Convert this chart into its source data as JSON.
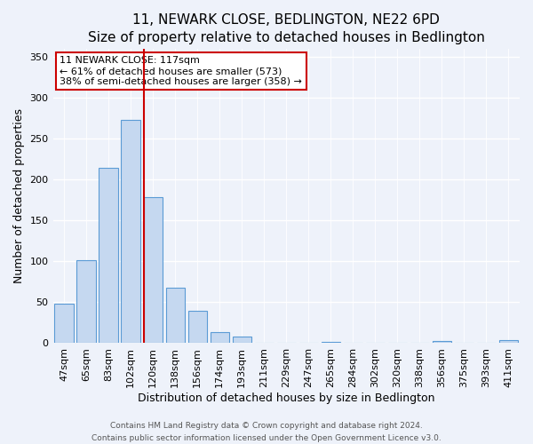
{
  "title": "11, NEWARK CLOSE, BEDLINGTON, NE22 6PD",
  "subtitle": "Size of property relative to detached houses in Bedlington",
  "xlabel": "Distribution of detached houses by size in Bedlington",
  "ylabel": "Number of detached properties",
  "bar_labels": [
    "47sqm",
    "65sqm",
    "83sqm",
    "102sqm",
    "120sqm",
    "138sqm",
    "156sqm",
    "174sqm",
    "193sqm",
    "211sqm",
    "229sqm",
    "247sqm",
    "265sqm",
    "284sqm",
    "302sqm",
    "320sqm",
    "338sqm",
    "356sqm",
    "375sqm",
    "393sqm",
    "411sqm"
  ],
  "bar_values": [
    48,
    102,
    215,
    273,
    179,
    68,
    40,
    14,
    8,
    0,
    0,
    0,
    2,
    0,
    0,
    0,
    0,
    3,
    0,
    0,
    4
  ],
  "bar_color": "#c5d8f0",
  "bar_edge_color": "#5b9bd5",
  "vline_color": "#cc0000",
  "annotation_title": "11 NEWARK CLOSE: 117sqm",
  "annotation_line1": "← 61% of detached houses are smaller (573)",
  "annotation_line2": "38% of semi-detached houses are larger (358) →",
  "annotation_box_edge_color": "#cc0000",
  "ylim": [
    0,
    360
  ],
  "yticks": [
    0,
    50,
    100,
    150,
    200,
    250,
    300,
    350
  ],
  "footer1": "Contains HM Land Registry data © Crown copyright and database right 2024.",
  "footer2": "Contains public sector information licensed under the Open Government Licence v3.0.",
  "bg_color": "#eef2fa",
  "plot_bg_color": "#eef2fa",
  "grid_color": "#ffffff",
  "title_fontsize": 11,
  "subtitle_fontsize": 9.5,
  "xlabel_fontsize": 9,
  "ylabel_fontsize": 9,
  "tick_fontsize": 8,
  "annotation_fontsize": 8,
  "footer_fontsize": 6.5
}
